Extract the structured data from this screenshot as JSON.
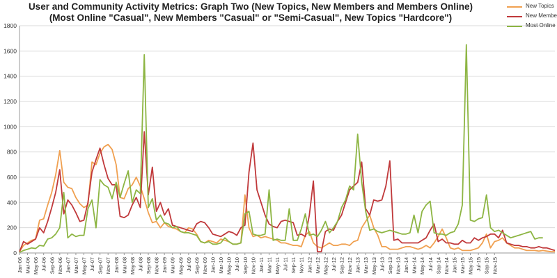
{
  "chart_data": {
    "type": "line",
    "title": "User and Community Activity Metrics: Graph Two (New Topics, New Members and Members Online)",
    "subtitle": "(Most Online \"Casual\", New Members \"Casual\" or \"Semi-Casual\", New Topics \"Hardcore\")",
    "xlabel": "",
    "ylabel": "",
    "ylim": [
      0,
      1800
    ],
    "yticks": [
      0,
      200,
      400,
      600,
      800,
      1000,
      1200,
      1400,
      1600,
      1800
    ],
    "grid": true,
    "legend_position": "top-right",
    "x_tick_labels": [
      "Jan-06",
      "Mar-06",
      "May-06",
      "Jul-06",
      "Sep-06",
      "Nov-06",
      "Jan-07",
      "Mar-07",
      "May-07",
      "Jul-07",
      "Sep-07",
      "Nov-07",
      "Jan-08",
      "Mar-08",
      "May-08",
      "Jul-08",
      "Sep-08",
      "Nov-08",
      "Jan-09",
      "Mar-09",
      "May-09",
      "Jul-09",
      "Sep-09",
      "Nov-09",
      "Jan-10",
      "Mar-10",
      "May-10",
      "Jul-10",
      "Sep-10",
      "Nov-10",
      "Jan-11",
      "Mar-11",
      "May-11",
      "Jul-11",
      "Sep-11",
      "Nov-11",
      "Jan-12",
      "Mar-12",
      "May-12",
      "Jul-12",
      "Sep-12",
      "Nov-12",
      "Jan-13",
      "Mar-13",
      "May-13",
      "Jul-13",
      "Sep-13",
      "Nov-13",
      "Jan-14",
      "Mar-14",
      "May-14",
      "Jul-14",
      "Sep-14",
      "Nov-14",
      "Jan-15",
      "Mar-15",
      "May-15",
      "Jul-15",
      "Sep-15",
      "Nov-15"
    ],
    "x_start": "Jan-06",
    "series": [
      {
        "name": "New Topics",
        "color": "#F0A050",
        "values": [
          10,
          60,
          80,
          100,
          110,
          260,
          270,
          380,
          480,
          620,
          810,
          560,
          520,
          510,
          440,
          390,
          360,
          380,
          720,
          700,
          790,
          840,
          860,
          820,
          700,
          440,
          430,
          510,
          540,
          600,
          530,
          430,
          320,
          240,
          250,
          200,
          240,
          210,
          200,
          190,
          170,
          160,
          200,
          190,
          150,
          90,
          80,
          100,
          90,
          80,
          110,
          100,
          90,
          70,
          70,
          80,
          460,
          200,
          130,
          140,
          120,
          130,
          120,
          110,
          100,
          80,
          80,
          70,
          60,
          60,
          50,
          140,
          170,
          80,
          50,
          40,
          60,
          80,
          60,
          60,
          70,
          70,
          60,
          90,
          100,
          200,
          250,
          300,
          200,
          140,
          50,
          50,
          30,
          30,
          30,
          40,
          50,
          50,
          40,
          30,
          40,
          60,
          40,
          80,
          130,
          190,
          120,
          40,
          30,
          40,
          20,
          20,
          20,
          30,
          40,
          80,
          150,
          40,
          90,
          100,
          120,
          80,
          60,
          40,
          40,
          30,
          20,
          20,
          20,
          15,
          20,
          15,
          10,
          10
        ]
      },
      {
        "name": "New Members",
        "color": "#C0393B",
        "values": [
          10,
          90,
          70,
          90,
          110,
          200,
          160,
          250,
          360,
          480,
          660,
          310,
          420,
          380,
          320,
          250,
          260,
          400,
          640,
          740,
          830,
          700,
          590,
          540,
          540,
          290,
          280,
          300,
          380,
          440,
          360,
          960,
          460,
          680,
          330,
          400,
          300,
          350,
          220,
          210,
          200,
          190,
          180,
          170,
          230,
          250,
          240,
          200,
          150,
          140,
          130,
          150,
          170,
          160,
          140,
          200,
          220,
          640,
          870,
          500,
          400,
          300,
          230,
          210,
          200,
          250,
          260,
          250,
          240,
          140,
          150,
          130,
          300,
          570,
          10,
          10,
          170,
          190,
          180,
          250,
          300,
          400,
          500,
          530,
          560,
          720,
          350,
          300,
          420,
          410,
          420,
          530,
          730,
          100,
          110,
          80,
          80,
          80,
          80,
          80,
          100,
          120,
          180,
          230,
          90,
          110,
          80,
          80,
          70,
          70,
          100,
          80,
          80,
          120,
          100,
          120,
          130,
          150,
          150,
          120,
          180,
          80,
          70,
          60,
          60,
          50,
          50,
          40,
          40,
          50,
          40,
          40,
          30,
          20
        ]
      },
      {
        "name": "Most Online",
        "color": "#8DB543",
        "values": [
          5,
          20,
          30,
          40,
          35,
          60,
          55,
          110,
          120,
          150,
          200,
          480,
          120,
          150,
          130,
          140,
          140,
          350,
          420,
          200,
          580,
          540,
          520,
          430,
          560,
          440,
          550,
          650,
          400,
          500,
          470,
          1570,
          360,
          430,
          260,
          300,
          240,
          230,
          200,
          210,
          170,
          160,
          160,
          150,
          140,
          90,
          80,
          90,
          70,
          70,
          80,
          120,
          90,
          70,
          70,
          80,
          310,
          330,
          150,
          140,
          140,
          150,
          500,
          100,
          110,
          100,
          100,
          350,
          100,
          100,
          190,
          310,
          140,
          150,
          130,
          180,
          250,
          160,
          200,
          250,
          360,
          420,
          530,
          500,
          940,
          560,
          330,
          180,
          190,
          170,
          160,
          170,
          180,
          170,
          160,
          150,
          150,
          160,
          300,
          160,
          330,
          380,
          410,
          160,
          150,
          150,
          140,
          160,
          170,
          230,
          380,
          1650,
          260,
          250,
          270,
          280,
          460,
          200,
          170,
          180,
          160,
          140,
          120,
          130,
          140,
          150,
          160,
          170,
          110,
          120,
          120
        ]
      }
    ]
  }
}
